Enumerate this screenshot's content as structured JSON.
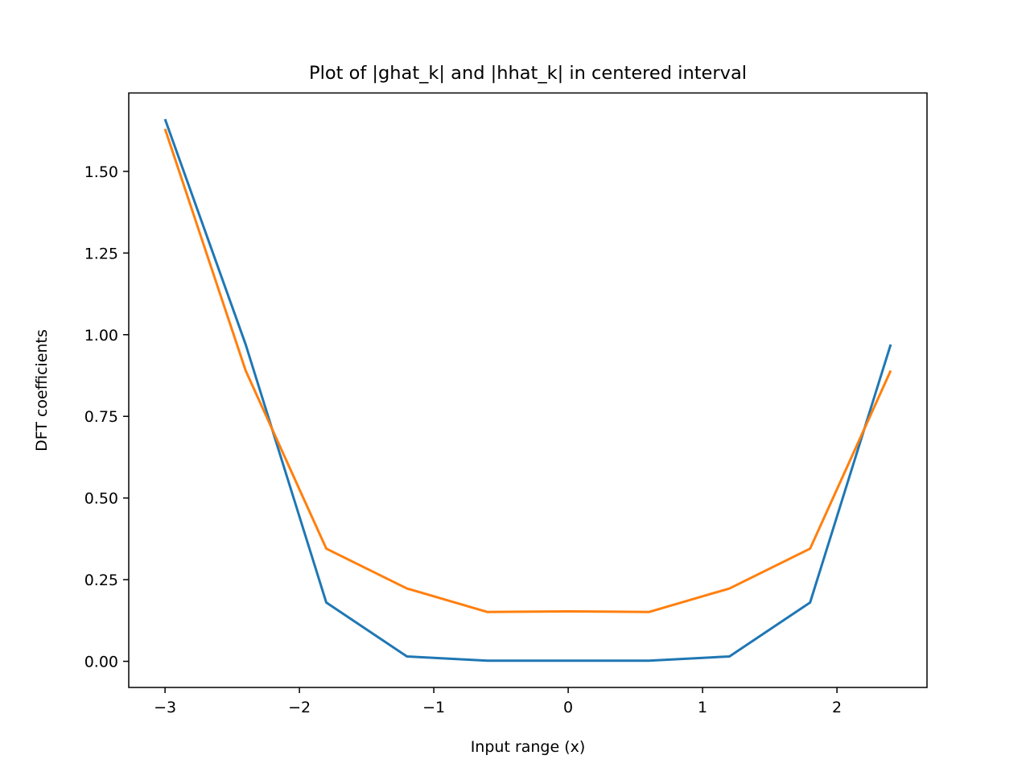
{
  "chart_data": {
    "type": "line",
    "title": "Plot of |ghat_k| and |hhat_k| in centered interval",
    "xlabel": "Input range (x)",
    "ylabel": "DFT coefficients",
    "xlim": [
      -3.27,
      2.67
    ],
    "ylim": [
      -0.08,
      1.74
    ],
    "xticks": [
      -3,
      -2,
      -1,
      0,
      1,
      2
    ],
    "xtick_labels": [
      "−3",
      "−2",
      "−1",
      "0",
      "1",
      "2"
    ],
    "yticks": [
      0.0,
      0.25,
      0.5,
      0.75,
      1.0,
      1.25,
      1.5
    ],
    "ytick_labels": [
      "0.00",
      "0.25",
      "0.50",
      "0.75",
      "1.00",
      "1.25",
      "1.50"
    ],
    "grid": false,
    "x": [
      -3.0,
      -2.4,
      -1.8,
      -1.2,
      -0.6,
      0.0,
      0.6,
      1.2,
      1.8,
      2.4
    ],
    "series": [
      {
        "color": "#1f77b4",
        "values": [
          1.66,
          0.97,
          0.18,
          0.015,
          0.002,
          0.002,
          0.002,
          0.015,
          0.18,
          0.97
        ]
      },
      {
        "color": "#ff7f0e",
        "values": [
          1.63,
          0.89,
          0.345,
          0.223,
          0.151,
          0.153,
          0.151,
          0.223,
          0.345,
          0.89
        ]
      }
    ]
  }
}
